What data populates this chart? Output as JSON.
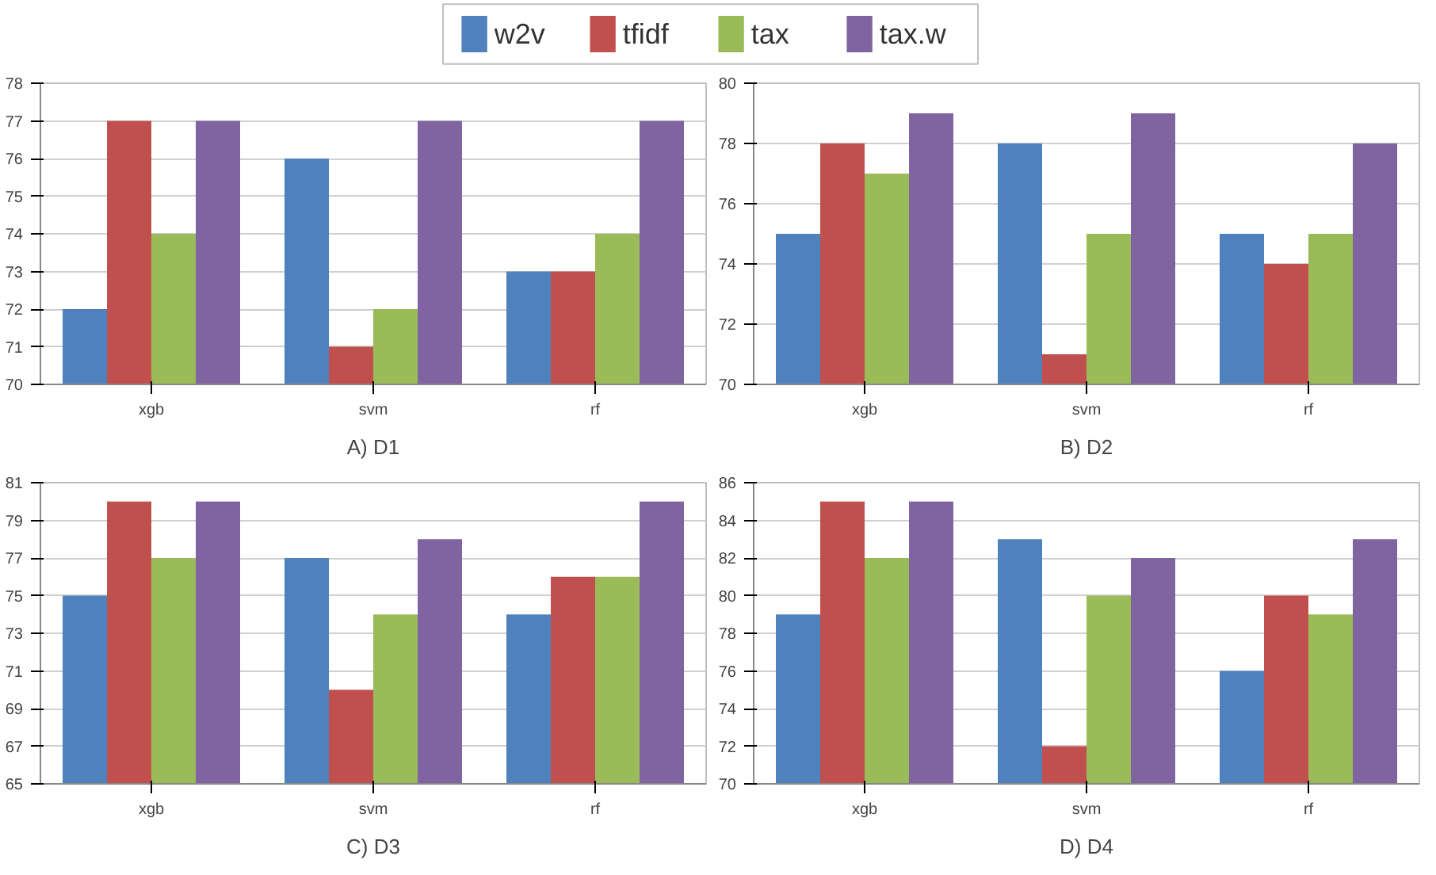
{
  "chart_data": [
    {
      "type": "bar",
      "title": "A) D1",
      "categories": [
        "xgb",
        "svm",
        "rf"
      ],
      "ylim": [
        70,
        78
      ],
      "yticks": [
        70,
        71,
        72,
        73,
        74,
        75,
        76,
        77,
        78
      ],
      "grid": "y",
      "legend": "top",
      "series": [
        {
          "name": "w2v",
          "color": "#4f81bd",
          "values": [
            72,
            76,
            73
          ]
        },
        {
          "name": "tfidf",
          "color": "#c0504d",
          "values": [
            77,
            71,
            73
          ]
        },
        {
          "name": "tax",
          "color": "#9bbb59",
          "values": [
            74,
            72,
            74
          ]
        },
        {
          "name": "tax.w",
          "color": "#8064a2",
          "values": [
            77,
            77,
            77
          ]
        }
      ]
    },
    {
      "type": "bar",
      "title": "B) D2",
      "categories": [
        "xgb",
        "svm",
        "rf"
      ],
      "ylim": [
        70,
        80
      ],
      "yticks": [
        70,
        72,
        74,
        76,
        78,
        80
      ],
      "grid": "y",
      "series": [
        {
          "color": "#4f81bd",
          "values": [
            75,
            78,
            75
          ]
        },
        {
          "color": "#c0504d",
          "values": [
            78,
            71,
            74
          ]
        },
        {
          "color": "#9bbb59",
          "values": [
            77,
            75,
            75
          ]
        },
        {
          "color": "#8064a2",
          "values": [
            79,
            79,
            78
          ]
        }
      ]
    },
    {
      "type": "bar",
      "title": "C) D3",
      "categories": [
        "xgb",
        "svm",
        "rf"
      ],
      "ylim": [
        65,
        81
      ],
      "yticks": [
        65,
        67,
        69,
        71,
        73,
        75,
        77,
        79,
        81
      ],
      "grid": "y",
      "series": [
        {
          "color": "#4f81bd",
          "values": [
            75,
            77,
            74
          ]
        },
        {
          "color": "#c0504d",
          "values": [
            80,
            70,
            76
          ]
        },
        {
          "color": "#9bbb59",
          "values": [
            77,
            74,
            76
          ]
        },
        {
          "color": "#8064a2",
          "values": [
            80,
            78,
            80
          ]
        }
      ]
    },
    {
      "type": "bar",
      "title": "D) D4",
      "categories": [
        "xgb",
        "svm",
        "rf"
      ],
      "ylim": [
        70,
        86
      ],
      "yticks": [
        70,
        72,
        74,
        76,
        78,
        80,
        82,
        84,
        86
      ],
      "grid": "y",
      "series": [
        {
          "color": "#4f81bd",
          "values": [
            79,
            83,
            76
          ]
        },
        {
          "color": "#c0504d",
          "values": [
            85,
            72,
            80
          ]
        },
        {
          "color": "#9bbb59",
          "values": [
            82,
            80,
            79
          ]
        },
        {
          "color": "#8064a2",
          "values": [
            85,
            82,
            83
          ]
        }
      ]
    }
  ]
}
